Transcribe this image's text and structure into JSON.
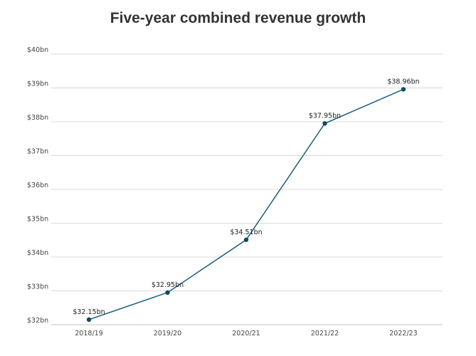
{
  "chart_data": {
    "type": "line",
    "title": "Five-year combined revenue growth",
    "xlabel": "",
    "ylabel": "",
    "categories": [
      "2018/19",
      "2019/20",
      "2020/21",
      "2021/22",
      "2022/23"
    ],
    "series": [
      {
        "values": [
          32.15,
          32.95,
          34.51,
          37.95,
          38.96
        ],
        "data_labels": [
          "$32.15bn",
          "$32.95bn",
          "$34.51bn",
          "$37.95bn",
          "$38.96bn"
        ]
      }
    ],
    "ylim": [
      32,
      40
    ],
    "y_ticks": [
      32,
      33,
      34,
      35,
      36,
      37,
      38,
      39,
      40
    ],
    "y_tick_labels": [
      "$32bn",
      "$33bn",
      "$34bn",
      "$35bn",
      "$36bn",
      "$37bn",
      "$38bn",
      "$39bn",
      "$40bn"
    ],
    "grid": true,
    "legend": "none",
    "colors": {
      "line": "#1a5f7a",
      "point": "#0e4a63"
    }
  }
}
